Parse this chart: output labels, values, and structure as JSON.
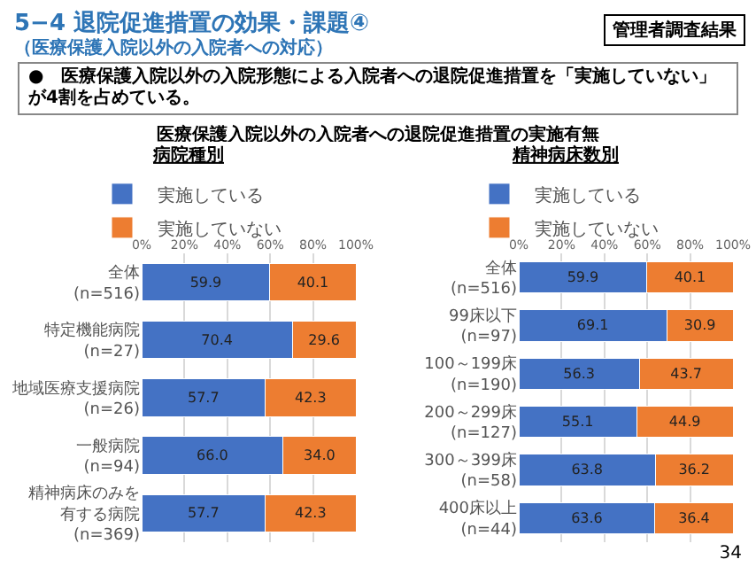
{
  "chart_data": [
    {
      "type": "bar",
      "orientation": "horizontal",
      "stacked": true,
      "title": "病院種別",
      "legend": "top",
      "data_labels": true,
      "grid": "x",
      "annotations": [
        "5−4 退院促進措置の効果・課題④",
        "（医療保護入院以外の入院者への対応）",
        "管理者調査結果",
        "●　医療保護入院以外の入院形態による入院者への退院促進措置を「実施していない」が4割を占めている。",
        "医療保護入院以外の入院者への退院促進措置の実施有無"
      ],
      "categories": [
        "全体\n(n=516)",
        "特定機能病院\n(n=27)",
        "地域医療支援病院\n(n=26)",
        "一般病院\n(n=94)",
        "精神病床のみを有する病院\n(n=369)"
      ],
      "series": [
        {
          "name": "実施している",
          "color": "#4472c4",
          "values": [
            59.9,
            70.4,
            57.7,
            66,
            57.7
          ],
          "value_labels": [
            "59.9",
            "70.4",
            "57.7",
            "66.0",
            "57.7"
          ]
        },
        {
          "name": "実施していない",
          "color": "#ed7d31",
          "values": [
            40.1,
            29.6,
            42.3,
            34,
            42.3
          ],
          "value_labels": [
            "40.1",
            "29.6",
            "42.3",
            "34.0",
            "42.3"
          ]
        }
      ],
      "xlim": [
        0,
        100
      ],
      "xticks": [
        {
          "value": 0,
          "label": "0%"
        },
        {
          "value": 20,
          "label": "20%"
        },
        {
          "value": 40,
          "label": "40%"
        },
        {
          "value": 60,
          "label": "60%"
        },
        {
          "value": 80,
          "label": "80%"
        },
        {
          "value": 100,
          "label": "100%"
        }
      ]
    },
    {
      "type": "bar",
      "orientation": "horizontal",
      "stacked": true,
      "title": "精神病床数別",
      "legend": "top",
      "data_labels": true,
      "grid": "x",
      "annotations": [
        "34"
      ],
      "categories": [
        "全体\n(n=516)",
        "99床以下\n(n=97)",
        "100～199床\n(n=190)",
        "200～299床\n(n=127)",
        "300～399床\n(n=58)",
        "400床以上\n(n=44)"
      ],
      "series": [
        {
          "name": "実施している",
          "color": "#4472c4",
          "values": [
            59.9,
            69.1,
            56.3,
            55.1,
            63.8,
            63.6
          ]
        },
        {
          "name": "実施していない",
          "color": "#ed7d31",
          "values": [
            40.1,
            30.9,
            43.7,
            44.9,
            36.2,
            36.4
          ]
        }
      ],
      "xlim": [
        0,
        100
      ],
      "xticks": [
        {
          "value": 0,
          "label": "0%"
        },
        {
          "value": 20,
          "label": "20%"
        },
        {
          "value": 40,
          "label": "40%"
        },
        {
          "value": 60,
          "label": "60%"
        },
        {
          "value": 80,
          "label": "80%"
        },
        {
          "value": 100,
          "label": "100%"
        }
      ]
    }
  ]
}
